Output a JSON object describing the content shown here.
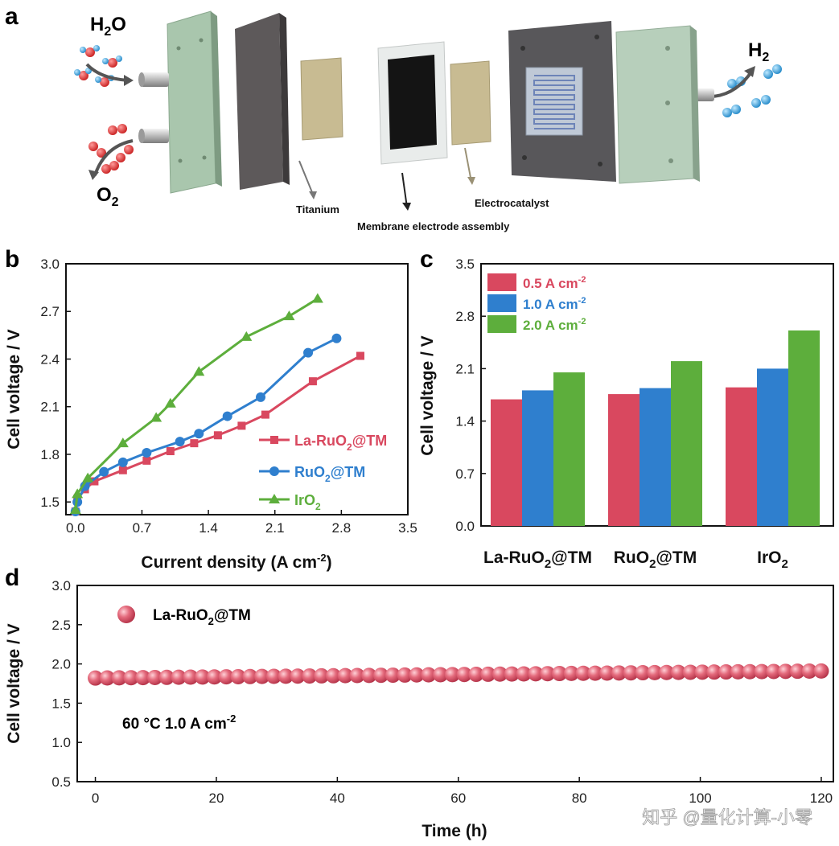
{
  "panels": {
    "a": {
      "label": "a",
      "inlet": {
        "base": "H",
        "sub": "2",
        "tail": "O"
      },
      "outlet_o2": {
        "base": "O",
        "sub": "2"
      },
      "outlet_h2": {
        "base": "H",
        "sub": "2"
      },
      "callouts": {
        "titanium": "Titanium",
        "mea": "Membrane electrode assembly",
        "catalyst": "Electrocatalyst"
      }
    },
    "b": {
      "label": "b"
    },
    "c": {
      "label": "c"
    },
    "d": {
      "label": "d"
    }
  },
  "watermark": "知乎 @量化计算-小零",
  "colors": {
    "red": "#d9485f",
    "blue": "#2f7fce",
    "green": "#5dae3c"
  },
  "chart_data": [
    {
      "id": "b",
      "type": "line",
      "xlabel": {
        "base": "Current density (A cm",
        "sup": "-2",
        "tail": ")"
      },
      "ylabel": "Cell voltage / V",
      "xlim": [
        -0.1,
        3.5
      ],
      "ylim": [
        1.42,
        3.0
      ],
      "xticks": [
        "0.0",
        "0.7",
        "1.4",
        "2.1",
        "2.8",
        "3.5"
      ],
      "yticks": [
        "1.5",
        "1.8",
        "2.1",
        "2.4",
        "2.7",
        "3.0"
      ],
      "series": [
        {
          "name": {
            "base": "La-RuO",
            "sub": "2",
            "tail": "@TM"
          },
          "marker": "square",
          "color": "#d9485f",
          "x": [
            0.0,
            0.02,
            0.1,
            0.2,
            0.5,
            0.75,
            1.0,
            1.25,
            1.5,
            1.75,
            2.0,
            2.5,
            3.0
          ],
          "y": [
            1.44,
            1.52,
            1.58,
            1.63,
            1.7,
            1.76,
            1.82,
            1.87,
            1.92,
            1.98,
            2.05,
            2.26,
            2.42
          ]
        },
        {
          "name": {
            "base": "RuO",
            "sub": "2",
            "tail": "@TM"
          },
          "marker": "circle",
          "color": "#2f7fce",
          "x": [
            0.0,
            0.02,
            0.1,
            0.3,
            0.5,
            0.75,
            1.1,
            1.3,
            1.6,
            1.95,
            2.45,
            2.75
          ],
          "y": [
            1.44,
            1.5,
            1.6,
            1.69,
            1.75,
            1.81,
            1.88,
            1.93,
            2.04,
            2.16,
            2.44,
            2.53
          ]
        },
        {
          "name": {
            "base": "IrO",
            "sub": "2",
            "tail": ""
          },
          "marker": "triangle",
          "color": "#5dae3c",
          "x": [
            0.0,
            0.02,
            0.13,
            0.5,
            0.85,
            1.0,
            1.3,
            1.8,
            2.25,
            2.55
          ],
          "y": [
            1.45,
            1.55,
            1.65,
            1.87,
            2.03,
            2.12,
            2.32,
            2.54,
            2.67,
            2.78
          ]
        }
      ]
    },
    {
      "id": "c",
      "type": "bar",
      "ylabel": "Cell voltage / V",
      "ylim": [
        0.0,
        3.5
      ],
      "yticks": [
        "0.0",
        "0.7",
        "1.4",
        "2.1",
        "2.8",
        "3.5"
      ],
      "categories": [
        {
          "base": "La-RuO",
          "sub": "2",
          "tail": "@TM"
        },
        {
          "base": "RuO",
          "sub": "2",
          "tail": "@TM"
        },
        {
          "base": "IrO",
          "sub": "2",
          "tail": ""
        }
      ],
      "series": [
        {
          "name": {
            "base": "0.5 A cm",
            "sup": "-2"
          },
          "color": "#d9485f",
          "values": [
            1.69,
            1.76,
            1.85
          ]
        },
        {
          "name": {
            "base": "1.0 A cm",
            "sup": "-2"
          },
          "color": "#2f7fce",
          "values": [
            1.81,
            1.84,
            2.1
          ]
        },
        {
          "name": {
            "base": "2.0 A cm",
            "sup": "-2"
          },
          "color": "#5dae3c",
          "values": [
            2.05,
            2.2,
            2.61
          ]
        }
      ]
    },
    {
      "id": "d",
      "type": "scatter",
      "xlabel": "Time (h)",
      "ylabel": "Cell voltage / V",
      "xlim": [
        -3,
        122
      ],
      "ylim": [
        0.5,
        3.0
      ],
      "xticks": [
        "0",
        "20",
        "40",
        "60",
        "80",
        "100",
        "120"
      ],
      "yticks": [
        "0.5",
        "1.0",
        "1.5",
        "2.0",
        "2.5",
        "3.0"
      ],
      "legend": {
        "base": "La-RuO",
        "sub": "2",
        "tail": "@TM"
      },
      "annotation": {
        "base": "60 °C  1.0 A cm",
        "sup": "-2"
      },
      "series": {
        "x_start": 0,
        "x_end": 120,
        "count": 62,
        "y_start": 1.82,
        "y_end": 1.91
      }
    }
  ]
}
